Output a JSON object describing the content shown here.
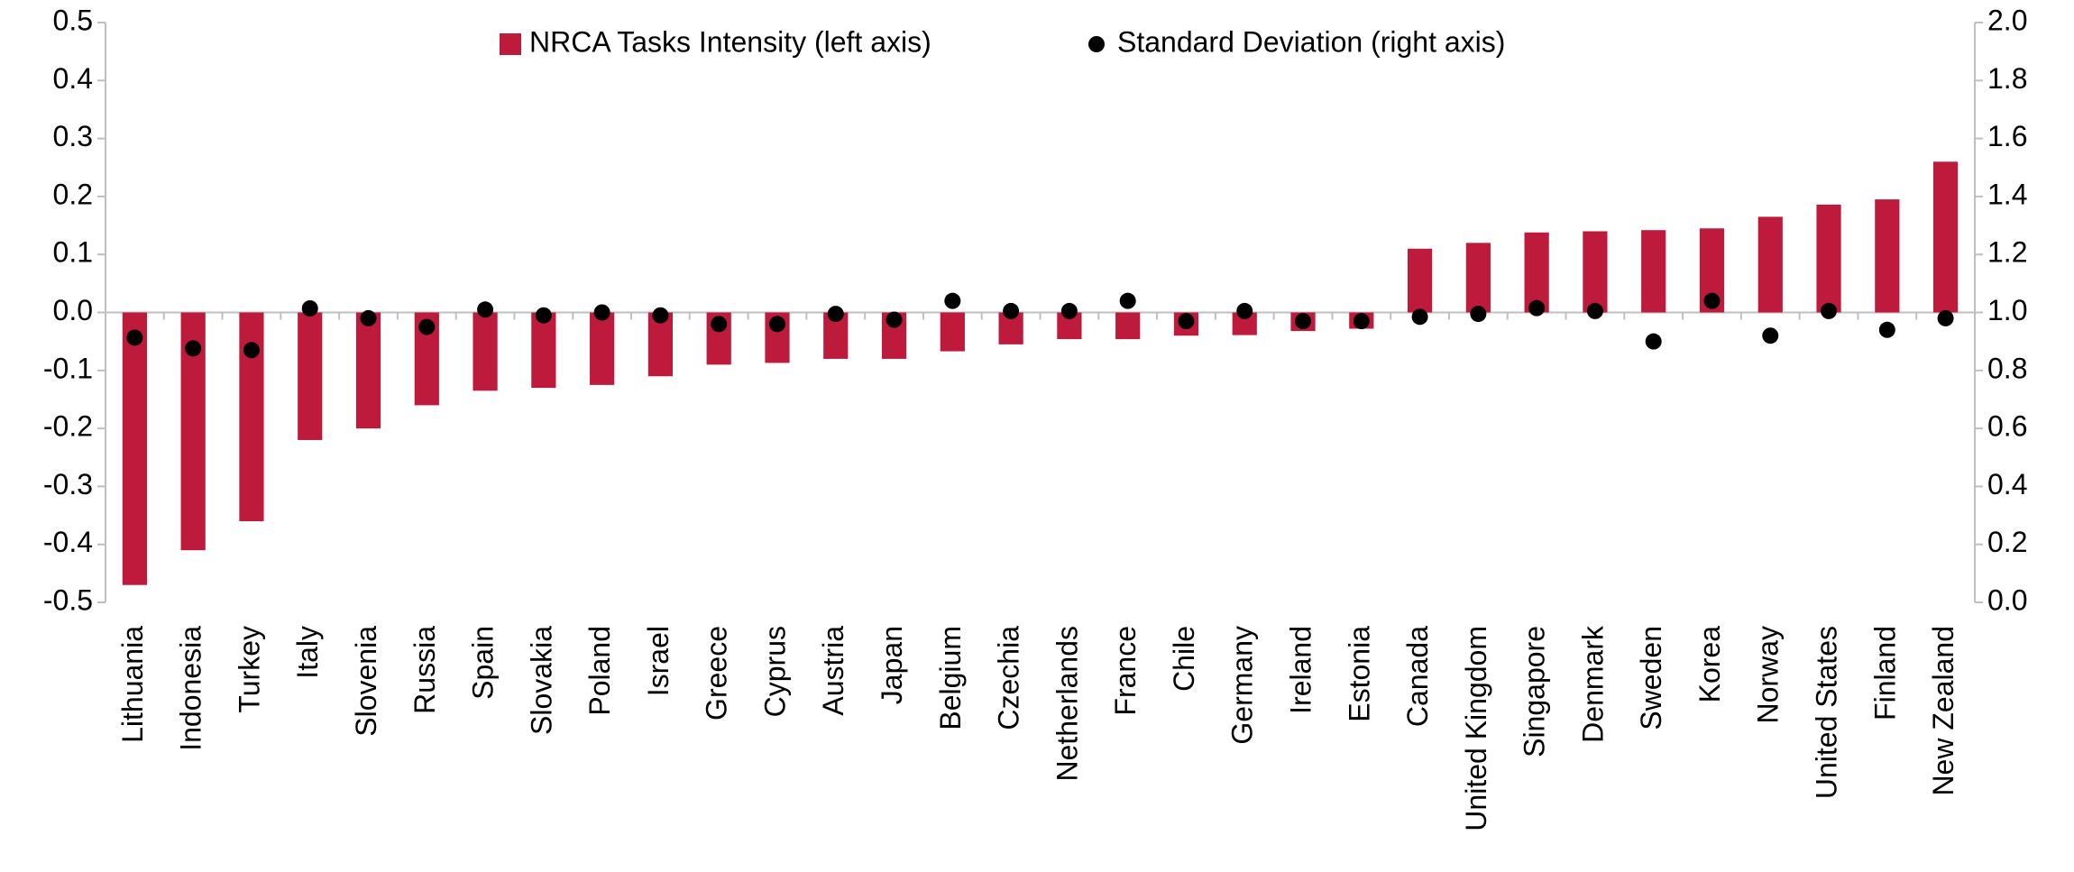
{
  "chart_data": {
    "type": "bar",
    "categories": [
      "Lithuania",
      "Indonesia",
      "Turkey",
      "Italy",
      "Slovenia",
      "Russia",
      "Spain",
      "Slovakia",
      "Poland",
      "Israel",
      "Greece",
      "Cyprus",
      "Austria",
      "Japan",
      "Belgium",
      "Czechia",
      "Netherlands",
      "France",
      "Chile",
      "Germany",
      "Ireland",
      "Estonia",
      "Canada",
      "United Kingdom",
      "Singapore",
      "Denmark",
      "Sweden",
      "Korea",
      "Norway",
      "United States",
      "Finland",
      "New Zealand"
    ],
    "series": [
      {
        "name": "NRCA Tasks Intensity (left axis)",
        "color": "#be1a3c",
        "type": "bar",
        "values": [
          -0.47,
          -0.41,
          -0.36,
          -0.22,
          -0.2,
          -0.16,
          -0.135,
          -0.13,
          -0.125,
          -0.11,
          -0.09,
          -0.087,
          -0.08,
          -0.08,
          -0.067,
          -0.055,
          -0.046,
          -0.046,
          -0.04,
          -0.039,
          -0.032,
          -0.028,
          0.11,
          0.12,
          0.138,
          0.14,
          0.142,
          0.145,
          0.165,
          0.186,
          0.195,
          0.26
        ]
      },
      {
        "name": "Standard Deviation (right axis)",
        "color": "#000000",
        "type": "scatter",
        "axis": "y2",
        "values": [
          0.913,
          0.876,
          0.87,
          1.014,
          0.98,
          0.95,
          1.01,
          0.99,
          1.0,
          0.99,
          0.96,
          0.96,
          0.995,
          0.975,
          1.04,
          1.005,
          1.005,
          1.04,
          0.97,
          1.005,
          0.97,
          0.97,
          0.985,
          0.995,
          1.015,
          1.005,
          0.9,
          1.04,
          0.92,
          1.005,
          0.94,
          0.98
        ]
      }
    ],
    "ylim": [
      -0.5,
      0.5
    ],
    "yticks": [
      -0.5,
      -0.4,
      -0.3,
      -0.2,
      -0.1,
      {
        "value": 0,
        "label": "0.0"
      },
      0.1,
      0.2,
      0.3,
      0.4,
      0.5
    ],
    "y2lim": [
      0,
      2
    ],
    "y2ticks": [
      {
        "value": 0,
        "label": "0.0"
      },
      0.2,
      0.4,
      0.6,
      0.8,
      {
        "value": 1,
        "label": "1.0"
      },
      1.2,
      1.4,
      1.6,
      1.8,
      {
        "value": 2,
        "label": "2.0"
      }
    ],
    "legend": "top"
  }
}
